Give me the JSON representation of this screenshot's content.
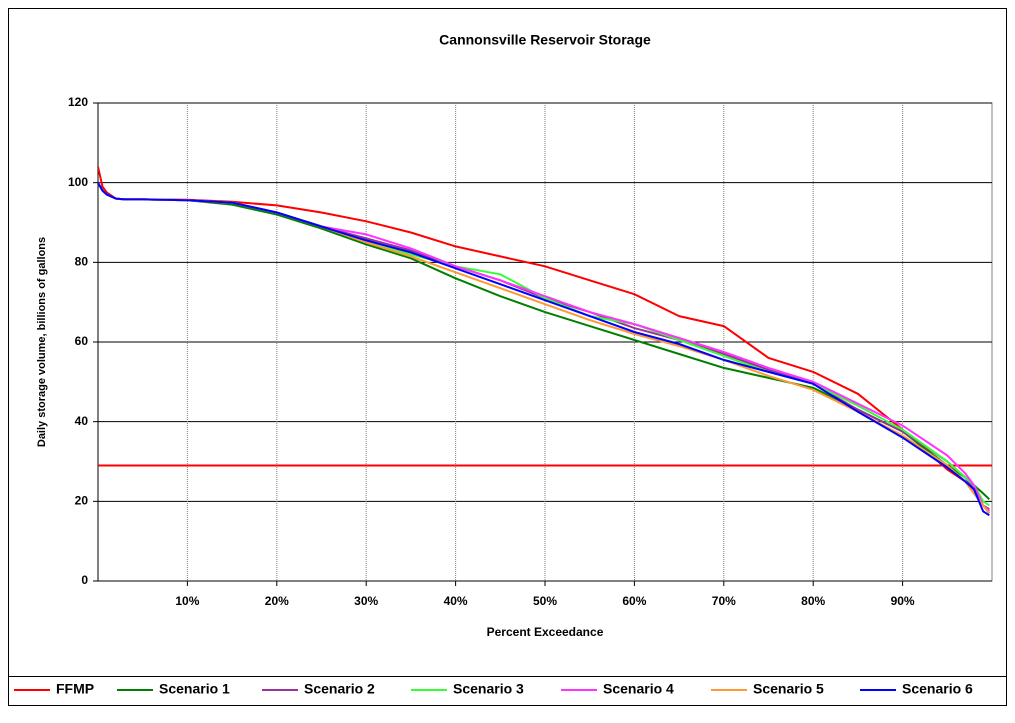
{
  "chart_data": {
    "type": "line",
    "title": "Cannonsville Reservoir Storage",
    "x_label": "Percent Exceedance",
    "y_label": "Daily storage volume, billions of gallons",
    "x": [
      0,
      0.5,
      1,
      2,
      3,
      5,
      10,
      15,
      20,
      25,
      30,
      35,
      40,
      45,
      50,
      55,
      60,
      65,
      70,
      75,
      80,
      85,
      90,
      95,
      97,
      98,
      99,
      99.7
    ],
    "series": [
      {
        "name": "FFMP",
        "color": "#ff0000",
        "values": [
          104,
          99,
          97.5,
          96,
          95.8,
          95.8,
          95.7,
          95.2,
          94.3,
          92.5,
          90.3,
          87.5,
          84,
          81.5,
          79,
          75.5,
          72,
          66.5,
          64,
          56,
          52.5,
          47,
          38,
          28,
          25,
          22,
          19,
          17
        ]
      },
      {
        "name": "Scenario 1",
        "color": "#008000",
        "values": [
          100,
          98,
          97,
          96,
          95.8,
          95.8,
          95.6,
          94.5,
          92,
          88.5,
          84.5,
          81,
          76,
          71.5,
          67.5,
          64,
          60.5,
          57,
          53.5,
          51,
          48.5,
          43,
          37.5,
          29,
          26,
          24,
          22,
          20.5
        ]
      },
      {
        "name": "Scenario 2",
        "color": "#993399",
        "values": [
          100,
          98,
          97,
          96,
          95.8,
          95.8,
          95.6,
          95,
          92.5,
          89,
          86,
          83,
          79,
          75.5,
          71,
          67.5,
          63.5,
          60.5,
          57,
          53,
          49.5,
          43,
          37.5,
          30,
          26,
          23,
          19,
          18
        ]
      },
      {
        "name": "Scenario 3",
        "color": "#33ff33",
        "values": [
          100,
          98,
          97,
          96,
          95.8,
          95.8,
          95.6,
          95,
          92.5,
          89,
          85.5,
          82,
          79,
          77,
          71,
          66.5,
          64.5,
          60.5,
          56.5,
          52.5,
          49.5,
          44,
          38,
          30,
          26,
          24,
          20,
          19
        ]
      },
      {
        "name": "Scenario 4",
        "color": "#ff33ff",
        "values": [
          100,
          98,
          97,
          96,
          95.8,
          95.8,
          95.6,
          95,
          92.5,
          89,
          87,
          83.5,
          79,
          75.5,
          71.5,
          67.5,
          64.5,
          61,
          57.5,
          53.5,
          50,
          44.5,
          39,
          31.5,
          27,
          24,
          19,
          17.5
        ]
      },
      {
        "name": "Scenario 5",
        "color": "#ff9933",
        "values": [
          100,
          98,
          97,
          96,
          95.8,
          95.8,
          95.6,
          95,
          92.5,
          89,
          85,
          81.5,
          77.5,
          73.5,
          69.5,
          65.5,
          62,
          59,
          55.5,
          51.5,
          48,
          42.5,
          36.5,
          29,
          25,
          22,
          19,
          17
        ]
      },
      {
        "name": "Scenario 6",
        "color": "#0000ff",
        "values": [
          100,
          98,
          97,
          96,
          95.8,
          95.8,
          95.6,
          95,
          92.5,
          89,
          85.5,
          82.5,
          78.5,
          74.5,
          70.5,
          66.5,
          62.5,
          59.5,
          55.5,
          52.5,
          49.5,
          42.5,
          36,
          28.5,
          25,
          23,
          17.5,
          16.5
        ]
      }
    ],
    "hlines": [
      {
        "value": 29,
        "color": "#ff0000"
      }
    ],
    "xlim": [
      0,
      100
    ],
    "xticks": [
      {
        "value": 10,
        "label": "10%"
      },
      {
        "value": 20,
        "label": "20%"
      },
      {
        "value": 30,
        "label": "30%"
      },
      {
        "value": 40,
        "label": "40%"
      },
      {
        "value": 50,
        "label": "50%"
      },
      {
        "value": 60,
        "label": "60%"
      },
      {
        "value": 70,
        "label": "70%"
      },
      {
        "value": 80,
        "label": "80%"
      },
      {
        "value": 90,
        "label": "90%"
      }
    ],
    "ylim": [
      0,
      120
    ],
    "yticks": [
      0,
      20,
      40,
      60,
      80,
      100,
      120
    ],
    "grid": true,
    "legend": "bottom"
  }
}
